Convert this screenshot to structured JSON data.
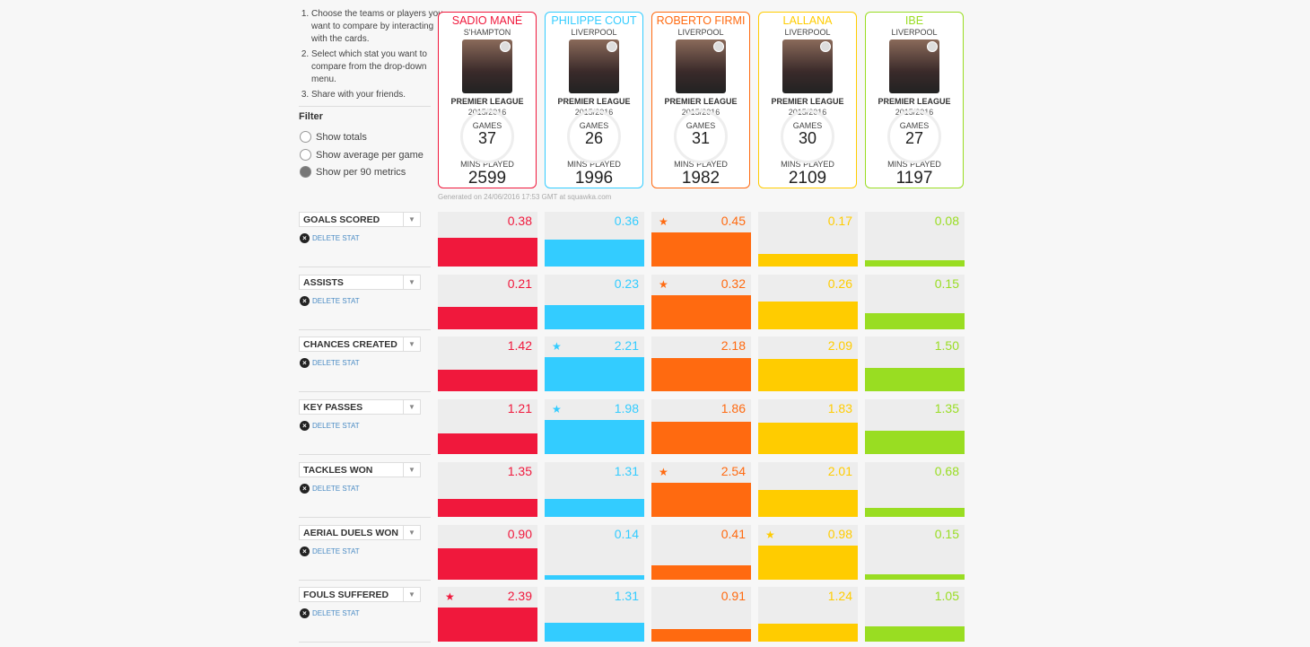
{
  "instructions": [
    "Choose the teams or players you want to compare by interacting with the cards.",
    "Select which stat you want to compare from the drop-down menu.",
    "Share with your friends."
  ],
  "filter": {
    "title": "Filter",
    "options": [
      {
        "label": "Show totals",
        "selected": false
      },
      {
        "label": "Show average per game",
        "selected": false
      },
      {
        "label": "Show per 90 metrics",
        "selected": true
      }
    ]
  },
  "players": [
    {
      "name": "SADIO MANÉ",
      "team": "S'HAMPTON",
      "league": "PREMIER LEAGUE",
      "season": "2015/2016",
      "games_label": "GAMES",
      "games": "37",
      "mins_label": "MINS PLAYED",
      "mins": "2599",
      "color": "#f0183c"
    },
    {
      "name": "PHILIPPE COUT",
      "team": "LIVERPOOL",
      "league": "PREMIER LEAGUE",
      "season": "2015/2016",
      "games_label": "GAMES",
      "games": "26",
      "mins_label": "MINS PLAYED",
      "mins": "1996",
      "color": "#33ccff"
    },
    {
      "name": "ROBERTO FIRMI",
      "team": "LIVERPOOL",
      "league": "PREMIER LEAGUE",
      "season": "2015/2016",
      "games_label": "GAMES",
      "games": "31",
      "mins_label": "MINS PLAYED",
      "mins": "1982",
      "color": "#ff6a10"
    },
    {
      "name": "LALLANA",
      "team": "LIVERPOOL",
      "league": "PREMIER LEAGUE",
      "season": "2015/2016",
      "games_label": "GAMES",
      "games": "30",
      "mins_label": "MINS PLAYED",
      "mins": "2109",
      "color": "#ffcc00"
    },
    {
      "name": "IBE",
      "team": "LIVERPOOL",
      "league": "PREMIER LEAGUE",
      "season": "2015/2016",
      "games_label": "GAMES",
      "games": "27",
      "mins_label": "MINS PLAYED",
      "mins": "1197",
      "color": "#99dd22"
    }
  ],
  "generated": "Generated on 24/06/2016 17:53 GMT at squawka.com",
  "delete_label": "DELETE STAT",
  "stats": [
    {
      "label": "GOALS SCORED",
      "values": [
        "0.38",
        "0.36",
        "0.45",
        "0.17",
        "0.08"
      ]
    },
    {
      "label": "ASSISTS",
      "values": [
        "0.21",
        "0.23",
        "0.32",
        "0.26",
        "0.15"
      ]
    },
    {
      "label": "CHANCES CREATED",
      "values": [
        "1.42",
        "2.21",
        "2.18",
        "2.09",
        "1.50"
      ]
    },
    {
      "label": "KEY PASSES",
      "values": [
        "1.21",
        "1.98",
        "1.86",
        "1.83",
        "1.35"
      ]
    },
    {
      "label": "TACKLES WON",
      "values": [
        "1.35",
        "1.31",
        "2.54",
        "2.01",
        "0.68"
      ]
    },
    {
      "label": "AERIAL DUELS WON",
      "values": [
        "0.90",
        "0.14",
        "0.41",
        "0.98",
        "0.15"
      ]
    },
    {
      "label": "FOULS SUFFERED",
      "values": [
        "2.39",
        "1.31",
        "0.91",
        "1.24",
        "1.05"
      ]
    }
  ]
}
